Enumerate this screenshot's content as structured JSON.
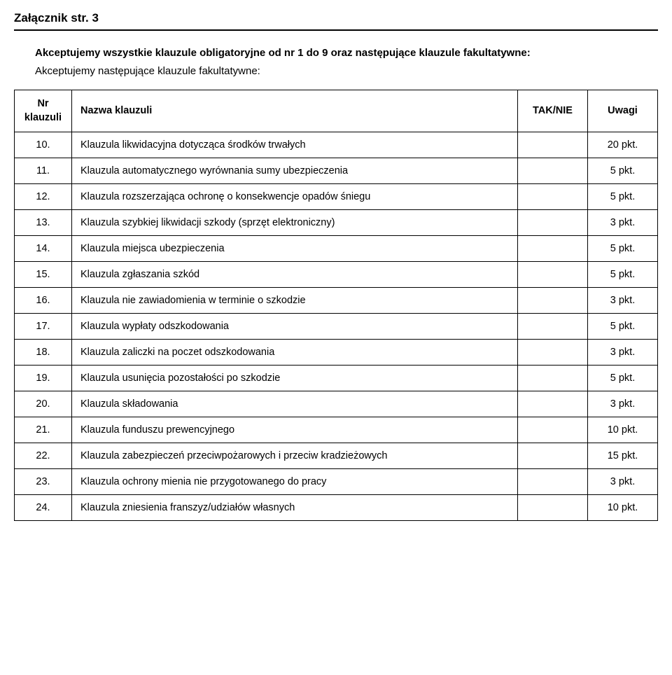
{
  "header": {
    "title": "Załącznik str. 3"
  },
  "intro": {
    "line1": "Akceptujemy wszystkie klauzule obligatoryjne od nr 1 do 9 oraz następujące klauzule fakultatywne:",
    "line2": "Akceptujemy następujące klauzule fakultatywne:"
  },
  "table": {
    "columns": {
      "nr": "Nr klauzuli",
      "name": "Nazwa klauzuli",
      "tak": "TAK/NIE",
      "uwagi": "Uwagi"
    },
    "rows": [
      {
        "nr": "10.",
        "name": "Klauzula likwidacyjna dotycząca środków trwałych",
        "tak": "",
        "uwagi": "20 pkt."
      },
      {
        "nr": "11.",
        "name": "Klauzula automatycznego wyrównania sumy ubezpieczenia",
        "tak": "",
        "uwagi": "5 pkt."
      },
      {
        "nr": "12.",
        "name": "Klauzula rozszerzająca ochronę o konsekwencje opadów śniegu",
        "tak": "",
        "uwagi": "5 pkt."
      },
      {
        "nr": "13.",
        "name": "Klauzula szybkiej likwidacji szkody (sprzęt elektroniczny)",
        "tak": "",
        "uwagi": "3 pkt."
      },
      {
        "nr": "14.",
        "name": "Klauzula miejsca ubezpieczenia",
        "tak": "",
        "uwagi": "5 pkt."
      },
      {
        "nr": "15.",
        "name": "Klauzula zgłaszania szkód",
        "tak": "",
        "uwagi": "5 pkt."
      },
      {
        "nr": "16.",
        "name": "Klauzula nie zawiadomienia w terminie o szkodzie",
        "tak": "",
        "uwagi": "3 pkt."
      },
      {
        "nr": "17.",
        "name": "Klauzula wypłaty odszkodowania",
        "tak": "",
        "uwagi": "5 pkt."
      },
      {
        "nr": "18.",
        "name": "Klauzula zaliczki na poczet odszkodowania",
        "tak": "",
        "uwagi": "3 pkt."
      },
      {
        "nr": "19.",
        "name": "Klauzula usunięcia pozostałości po szkodzie",
        "tak": "",
        "uwagi": "5 pkt."
      },
      {
        "nr": "20.",
        "name": "Klauzula składowania",
        "tak": "",
        "uwagi": "3 pkt."
      },
      {
        "nr": "21.",
        "name": "Klauzula funduszu prewencyjnego",
        "tak": "",
        "uwagi": "10 pkt."
      },
      {
        "nr": "22.",
        "name": "Klauzula zabezpieczeń przeciwpożarowych i przeciw kradzieżowych",
        "tak": "",
        "uwagi": "15 pkt."
      },
      {
        "nr": "23.",
        "name": "Klauzula ochrony mienia nie przygotowanego do pracy",
        "tak": "",
        "uwagi": "3 pkt."
      },
      {
        "nr": "24.",
        "name": "Klauzula zniesienia franszyz/udziałów własnych",
        "tak": "",
        "uwagi": "10 pkt."
      }
    ]
  },
  "style": {
    "background_color": "#ffffff",
    "text_color": "#000000",
    "border_color": "#000000",
    "font_family": "Verdana, Geneva, sans-serif",
    "header_fontsize": 17,
    "intro_fontsize": 15,
    "cell_fontsize": 14.5,
    "col_widths": {
      "nr": 82,
      "tak": 100,
      "uwagi": 100
    }
  }
}
